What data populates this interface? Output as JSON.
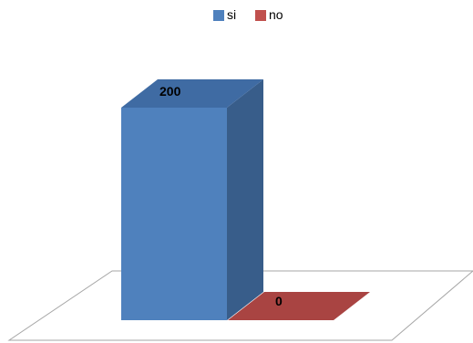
{
  "chart_data": {
    "type": "bar",
    "style": "3d-column",
    "categories": [
      ""
    ],
    "series": [
      {
        "name": "si",
        "values": [
          200
        ],
        "color": "#4F81BD"
      },
      {
        "name": "no",
        "values": [
          0
        ],
        "color": "#C0504D"
      }
    ],
    "title": "",
    "xlabel": "",
    "ylabel": "",
    "ylim": [
      0,
      200
    ],
    "grid": false,
    "legend": "top-center",
    "data_labels": [
      "200",
      "0"
    ]
  },
  "colors": {
    "si_front": "#4F81BD",
    "si_side": "#385D8A",
    "si_top": "#3F6BA3",
    "no_top": "#A94442",
    "floor_stroke": "#A6A6A6"
  }
}
